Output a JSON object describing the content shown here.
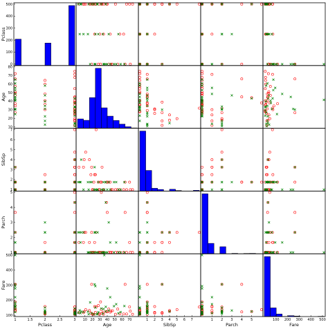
{
  "chart_data": {
    "type": "scatter",
    "variables": [
      "Pclass",
      "Age",
      "SibSp",
      "Parch",
      "Fare"
    ],
    "diagonal": "histogram",
    "colors": {
      "survived": "#008000",
      "died": "#ff0000",
      "hist_fill": "#0000ff"
    },
    "markers": {
      "survived": "x",
      "died": "o"
    },
    "ranges": {
      "Pclass": [
        1,
        3
      ],
      "Age": [
        0,
        80
      ],
      "SibSp": [
        0,
        8
      ],
      "Parch": [
        0,
        6
      ],
      "Fare": [
        0,
        512
      ]
    },
    "ticks": {
      "Pclass": [
        1.0,
        1.5,
        2.0,
        2.5,
        3.0
      ],
      "Age": [
        10,
        20,
        30,
        40,
        50,
        60,
        70
      ],
      "SibSp": [
        1,
        2,
        3,
        4,
        5,
        6,
        7
      ],
      "Parch": [
        1,
        2,
        3,
        4,
        5
      ],
      "Fare": [
        100,
        200,
        300,
        400,
        500
      ]
    },
    "row_ticks": {
      "Pclass": [
        0,
        100,
        200,
        300,
        400,
        500
      ],
      "Age": [
        10,
        20,
        30,
        40,
        50,
        60,
        70,
        80
      ],
      "SibSp": [
        1,
        2,
        3,
        4,
        5,
        6,
        7
      ],
      "Parch": [
        1,
        2,
        3,
        4,
        5
      ],
      "Fare": [
        100,
        200,
        300,
        400,
        500
      ]
    },
    "histograms": {
      "Pclass": {
        "edges": [
          1.0,
          1.2,
          1.4,
          1.6,
          1.8,
          2.0,
          2.2,
          2.4,
          2.6,
          2.8,
          3.0
        ],
        "counts": [
          216,
          0,
          0,
          0,
          0,
          184,
          0,
          0,
          0,
          491
        ]
      },
      "Age": {
        "edges": [
          0,
          8,
          16,
          24,
          32,
          40,
          48,
          56,
          64,
          72,
          80
        ],
        "counts": [
          54,
          46,
          177,
          346,
          118,
          70,
          45,
          24,
          9,
          2
        ]
      },
      "SibSp": {
        "edges": [
          0.0,
          0.8,
          1.6,
          2.4,
          3.2,
          4.0,
          4.8,
          5.6,
          6.4,
          7.2,
          8.0
        ],
        "counts": [
          608,
          209,
          28,
          16,
          0,
          18,
          5,
          0,
          0,
          7
        ]
      },
      "Parch": {
        "edges": [
          0.0,
          0.6,
          1.2,
          1.8,
          2.4,
          3.0,
          3.6,
          4.2,
          4.8,
          5.4,
          6.0
        ],
        "counts": [
          678,
          118,
          0,
          80,
          0,
          5,
          0,
          4,
          5,
          1
        ]
      },
      "Fare": {
        "edges": [
          0,
          51.2,
          102.4,
          153.6,
          204.8,
          256,
          307.2,
          358.4,
          409.6,
          460.8,
          512
        ],
        "counts": [
          732,
          106,
          31,
          2,
          11,
          6,
          0,
          0,
          0,
          3
        ]
      }
    },
    "observations": {
      "survived": [
        {
          "Pclass": 1,
          "Age": 38,
          "SibSp": 1,
          "Parch": 0,
          "Fare": 71.3
        },
        {
          "Pclass": 3,
          "Age": 26,
          "SibSp": 0,
          "Parch": 0,
          "Fare": 7.9
        },
        {
          "Pclass": 1,
          "Age": 35,
          "SibSp": 1,
          "Parch": 0,
          "Fare": 53.1
        },
        {
          "Pclass": 3,
          "Age": 27,
          "SibSp": 0,
          "Parch": 2,
          "Fare": 11.1
        },
        {
          "Pclass": 2,
          "Age": 14,
          "SibSp": 1,
          "Parch": 0,
          "Fare": 30.1
        },
        {
          "Pclass": 3,
          "Age": 4,
          "SibSp": 1,
          "Parch": 1,
          "Fare": 16.7
        },
        {
          "Pclass": 1,
          "Age": 58,
          "SibSp": 0,
          "Parch": 0,
          "Fare": 26.6
        },
        {
          "Pclass": 2,
          "Age": 55,
          "SibSp": 0,
          "Parch": 0,
          "Fare": 16
        },
        {
          "Pclass": 3,
          "Age": 15,
          "SibSp": 0,
          "Parch": 0,
          "Fare": 8.0
        },
        {
          "Pclass": 2,
          "Age": 34,
          "SibSp": 0,
          "Parch": 0,
          "Fare": 13
        },
        {
          "Pclass": 3,
          "Age": 38,
          "SibSp": 1,
          "Parch": 5,
          "Fare": 31.4
        },
        {
          "Pclass": 1,
          "Age": 49,
          "SibSp": 1,
          "Parch": 0,
          "Fare": 76.7
        },
        {
          "Pclass": 1,
          "Age": 23,
          "SibSp": 3,
          "Parch": 2,
          "Fare": 263
        },
        {
          "Pclass": 1,
          "Age": 24,
          "SibSp": 0,
          "Parch": 0,
          "Fare": 247.5
        },
        {
          "Pclass": 1,
          "Age": 36,
          "SibSp": 0,
          "Parch": 0,
          "Fare": 512.3
        },
        {
          "Pclass": 3,
          "Age": 1,
          "SibSp": 1,
          "Parch": 2,
          "Fare": 20.6
        },
        {
          "Pclass": 2,
          "Age": 3,
          "SibSp": 1,
          "Parch": 2,
          "Fare": 41.6
        },
        {
          "Pclass": 1,
          "Age": 63,
          "SibSp": 1,
          "Parch": 0,
          "Fare": 77.9
        },
        {
          "Pclass": 3,
          "Age": 22,
          "SibSp": 0,
          "Parch": 0,
          "Fare": 7.8
        },
        {
          "Pclass": 2,
          "Age": 28,
          "SibSp": 1,
          "Parch": 0,
          "Fare": 26
        },
        {
          "Pclass": 1,
          "Age": 17,
          "SibSp": 1,
          "Parch": 0,
          "Fare": 108.9
        },
        {
          "Pclass": 3,
          "Age": 5,
          "SibSp": 4,
          "Parch": 2,
          "Fare": 31.4
        },
        {
          "Pclass": 2,
          "Age": 42,
          "SibSp": 1,
          "Parch": 3,
          "Fare": 39.7
        },
        {
          "Pclass": 1,
          "Age": 44,
          "SibSp": 0,
          "Parch": 1,
          "Fare": 153.5
        },
        {
          "Pclass": 3,
          "Age": 32,
          "SibSp": 0,
          "Parch": 0,
          "Fare": 56.5
        },
        {
          "Pclass": 2,
          "Age": 24,
          "SibSp": 0,
          "Parch": 2,
          "Fare": 65
        },
        {
          "Pclass": 1,
          "Age": 52,
          "SibSp": 1,
          "Parch": 1,
          "Fare": 93.5
        },
        {
          "Pclass": 3,
          "Age": 19,
          "SibSp": 1,
          "Parch": 0,
          "Fare": 16.1
        },
        {
          "Pclass": 2,
          "Age": 8,
          "SibSp": 0,
          "Parch": 2,
          "Fare": 26.3
        },
        {
          "Pclass": 1,
          "Age": 40,
          "SibSp": 0,
          "Parch": 0,
          "Fare": 227.5
        }
      ],
      "died": [
        {
          "Pclass": 3,
          "Age": 22,
          "SibSp": 1,
          "Parch": 0,
          "Fare": 7.3
        },
        {
          "Pclass": 3,
          "Age": 35,
          "SibSp": 0,
          "Parch": 0,
          "Fare": 8.1
        },
        {
          "Pclass": 1,
          "Age": 54,
          "SibSp": 0,
          "Parch": 0,
          "Fare": 51.9
        },
        {
          "Pclass": 3,
          "Age": 2,
          "SibSp": 3,
          "Parch": 1,
          "Fare": 21.1
        },
        {
          "Pclass": 3,
          "Age": 20,
          "SibSp": 0,
          "Parch": 0,
          "Fare": 8.1
        },
        {
          "Pclass": 3,
          "Age": 39,
          "SibSp": 1,
          "Parch": 5,
          "Fare": 31.3
        },
        {
          "Pclass": 2,
          "Age": 35,
          "SibSp": 0,
          "Parch": 0,
          "Fare": 26
        },
        {
          "Pclass": 3,
          "Age": 8,
          "SibSp": 3,
          "Parch": 1,
          "Fare": 21.1
        },
        {
          "Pclass": 3,
          "Age": 40,
          "SibSp": 1,
          "Parch": 4,
          "Fare": 27.9
        },
        {
          "Pclass": 1,
          "Age": 19,
          "SibSp": 3,
          "Parch": 2,
          "Fare": 263
        },
        {
          "Pclass": 3,
          "Age": 66,
          "SibSp": 0,
          "Parch": 0,
          "Fare": 10.5
        },
        {
          "Pclass": 1,
          "Age": 28,
          "SibSp": 1,
          "Parch": 0,
          "Fare": 82.2
        },
        {
          "Pclass": 1,
          "Age": 42,
          "SibSp": 1,
          "Parch": 0,
          "Fare": 52
        },
        {
          "Pclass": 3,
          "Age": 21,
          "SibSp": 0,
          "Parch": 0,
          "Fare": 8.0
        },
        {
          "Pclass": 3,
          "Age": 18,
          "SibSp": 2,
          "Parch": 0,
          "Fare": 18
        },
        {
          "Pclass": 2,
          "Age": 30,
          "SibSp": 0,
          "Parch": 0,
          "Fare": 13
        },
        {
          "Pclass": 3,
          "Age": 9,
          "SibSp": 4,
          "Parch": 2,
          "Fare": 31.4
        },
        {
          "Pclass": 3,
          "Age": 11,
          "SibSp": 5,
          "Parch": 2,
          "Fare": 46.9
        },
        {
          "Pclass": 1,
          "Age": 45,
          "SibSp": 0,
          "Parch": 0,
          "Fare": 35.5
        },
        {
          "Pclass": 3,
          "Age": 25,
          "SibSp": 8,
          "Parch": 2,
          "Fare": 69.6
        },
        {
          "Pclass": 2,
          "Age": 57,
          "SibSp": 0,
          "Parch": 0,
          "Fare": 10.5
        },
        {
          "Pclass": 3,
          "Age": 70,
          "SibSp": 1,
          "Parch": 1,
          "Fare": 71
        },
        {
          "Pclass": 3,
          "Age": 24,
          "SibSp": 2,
          "Parch": 0,
          "Fare": 24.2
        },
        {
          "Pclass": 1,
          "Age": 71,
          "SibSp": 0,
          "Parch": 0,
          "Fare": 34.7
        },
        {
          "Pclass": 3,
          "Age": 32,
          "SibSp": 1,
          "Parch": 6,
          "Fare": 46.9
        },
        {
          "Pclass": 2,
          "Age": 44,
          "SibSp": 1,
          "Parch": 0,
          "Fare": 26
        },
        {
          "Pclass": 3,
          "Age": 29,
          "SibSp": 0,
          "Parch": 0,
          "Fare": 7.9
        },
        {
          "Pclass": 1,
          "Age": 47,
          "SibSp": 0,
          "Parch": 0,
          "Fare": 38.5
        },
        {
          "Pclass": 3,
          "Age": 16,
          "SibSp": 4,
          "Parch": 1,
          "Fare": 39.7
        },
        {
          "Pclass": 2,
          "Age": 62,
          "SibSp": 0,
          "Parch": 0,
          "Fare": 10.5
        },
        {
          "Pclass": 3,
          "Age": 51,
          "SibSp": 0,
          "Parch": 0,
          "Fare": 8.1
        },
        {
          "Pclass": 1,
          "Age": 64,
          "SibSp": 1,
          "Parch": 4,
          "Fare": 263
        },
        {
          "Pclass": 3,
          "Age": 33,
          "SibSp": 3,
          "Parch": 0,
          "Fare": 15.9
        },
        {
          "Pclass": 2,
          "Age": 23,
          "SibSp": 2,
          "Parch": 1,
          "Fare": 73.5
        },
        {
          "Pclass": 3,
          "Age": 74,
          "SibSp": 0,
          "Parch": 0,
          "Fare": 7.8
        },
        {
          "Pclass": 1,
          "Age": 31,
          "SibSp": 1,
          "Parch": 0,
          "Fare": 113.3
        }
      ]
    }
  }
}
